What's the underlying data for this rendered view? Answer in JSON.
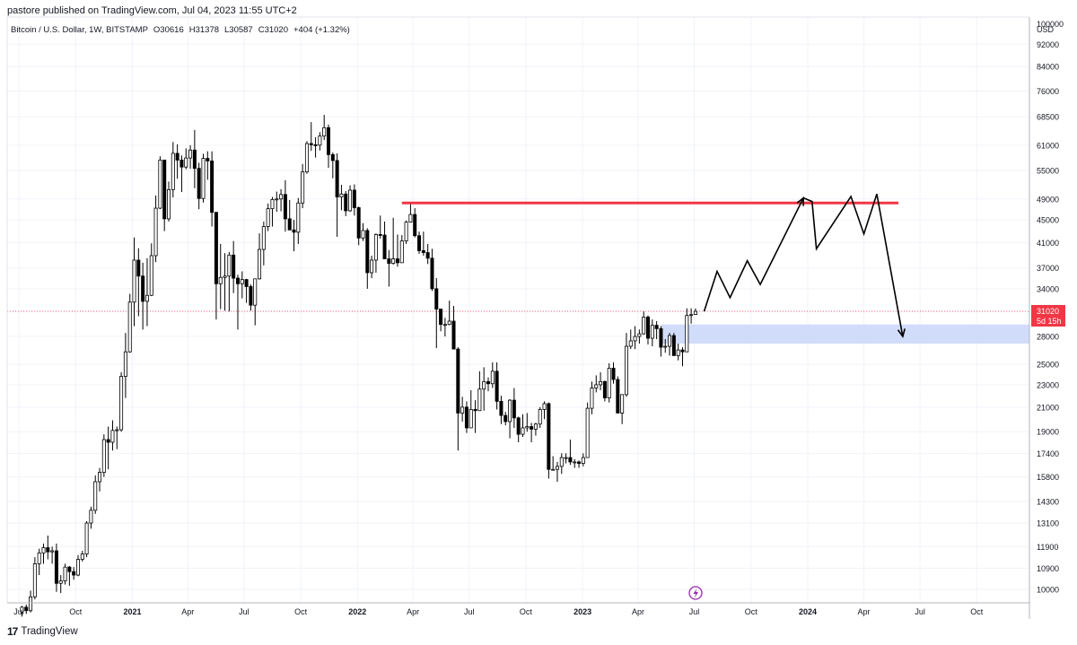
{
  "header": {
    "published_by": "pastore published on TradingView.com, Jul 04, 2023 11:55 UTC+2"
  },
  "symbol_line": {
    "name": "Bitcoin / U.S. Dollar, 1W, BITSTAMP",
    "open": "O30616",
    "high": "H31378",
    "low": "L30587",
    "close": "C31020",
    "change": "+404 (+1.32%)"
  },
  "price_scale": {
    "currency": "USD",
    "labels": [
      "100000",
      "92000",
      "84000",
      "76000",
      "68500",
      "61000",
      "55000",
      "49000",
      "45000",
      "41000",
      "37000",
      "34000",
      "31000",
      "28000",
      "25000",
      "23000",
      "21000",
      "19000",
      "17400",
      "15800",
      "14300",
      "13100",
      "11900",
      "10900",
      "10000"
    ]
  },
  "time_axis": {
    "labels": [
      "Jul",
      "Oct",
      "2021",
      "Apr",
      "Jul",
      "Oct",
      "2022",
      "Apr",
      "Jul",
      "Oct",
      "2023",
      "Apr",
      "Jul",
      "Oct",
      "2024",
      "Apr",
      "Jul",
      "Oct"
    ],
    "bold": [
      false,
      false,
      true,
      false,
      false,
      false,
      true,
      false,
      false,
      false,
      true,
      false,
      false,
      false,
      true,
      false,
      false,
      false
    ]
  },
  "last_price": {
    "value": "31020",
    "countdown": "5d 15h",
    "color": "#f23645"
  },
  "colors": {
    "resistance": "#f23645",
    "support_zone": "#d1dcfa",
    "candle": "#000000",
    "grid": "#f0f3fa"
  },
  "chart_data": {
    "type": "candlestick",
    "symbol": "Bitcoin / U.S. Dollar",
    "interval": "1W",
    "exchange": "BITSTAMP",
    "y_scale": "log",
    "ylim": [
      10000,
      100000
    ],
    "x_range": [
      "2020-07",
      "2024-11"
    ],
    "ohlc_weekly": [
      [
        "2020-07-06",
        9120,
        9350,
        8950,
        9300
      ],
      [
        "2020-07-13",
        9300,
        9400,
        9050,
        9170
      ],
      [
        "2020-07-20",
        9170,
        9950,
        9100,
        9700
      ],
      [
        "2020-07-27",
        9700,
        11400,
        9600,
        11100
      ],
      [
        "2020-08-03",
        11100,
        11800,
        10600,
        11600
      ],
      [
        "2020-08-10",
        11600,
        12050,
        11100,
        11850
      ],
      [
        "2020-08-17",
        11850,
        12450,
        11300,
        11650
      ],
      [
        "2020-08-24",
        11650,
        11900,
        11100,
        11700
      ],
      [
        "2020-08-31",
        11700,
        12050,
        9900,
        10250
      ],
      [
        "2020-09-07",
        10250,
        10600,
        9850,
        10350
      ],
      [
        "2020-09-14",
        10350,
        11100,
        10200,
        10950
      ],
      [
        "2020-09-21",
        10950,
        11000,
        10150,
        10750
      ],
      [
        "2020-09-28",
        10750,
        10950,
        10400,
        10600
      ],
      [
        "2020-10-05",
        10600,
        11500,
        10550,
        11300
      ],
      [
        "2020-10-12",
        11300,
        11700,
        11200,
        11550
      ],
      [
        "2020-10-19",
        11550,
        13200,
        11400,
        13100
      ],
      [
        "2020-10-26",
        13100,
        14000,
        12800,
        13800
      ],
      [
        "2020-11-02",
        13800,
        15900,
        13600,
        15500
      ],
      [
        "2020-11-09",
        15500,
        16400,
        14900,
        16100
      ],
      [
        "2020-11-16",
        16100,
        18800,
        15800,
        18400
      ],
      [
        "2020-11-23",
        18400,
        19400,
        16300,
        18200
      ],
      [
        "2020-11-30",
        18200,
        19900,
        17600,
        19100
      ],
      [
        "2020-12-07",
        19100,
        19400,
        17700,
        19150
      ],
      [
        "2020-12-14",
        19150,
        24200,
        19000,
        23800
      ],
      [
        "2020-12-21",
        23800,
        28400,
        21800,
        26300
      ],
      [
        "2020-12-28",
        26300,
        33300,
        26200,
        32200
      ],
      [
        "2021-01-04",
        32200,
        41900,
        29200,
        38200
      ],
      [
        "2021-01-11",
        38200,
        40100,
        30400,
        35800
      ],
      [
        "2021-01-18",
        35800,
        37800,
        28800,
        32300
      ],
      [
        "2021-01-25",
        32300,
        38500,
        29200,
        33100
      ],
      [
        "2021-02-01",
        33100,
        40900,
        33000,
        38900
      ],
      [
        "2021-02-08",
        38900,
        49700,
        37900,
        47200
      ],
      [
        "2021-02-15",
        47200,
        58300,
        47000,
        57400
      ],
      [
        "2021-02-22",
        57400,
        57500,
        43000,
        45200
      ],
      [
        "2021-03-01",
        45200,
        52600,
        44700,
        50900
      ],
      [
        "2021-03-08",
        50900,
        61800,
        49300,
        59000
      ],
      [
        "2021-03-15",
        59000,
        61200,
        53200,
        57400
      ],
      [
        "2021-03-22",
        57400,
        58500,
        50400,
        55800
      ],
      [
        "2021-03-29",
        55800,
        60200,
        55300,
        57900
      ],
      [
        "2021-04-05",
        57900,
        61000,
        55400,
        59800
      ],
      [
        "2021-04-12",
        59800,
        64900,
        51200,
        55500
      ],
      [
        "2021-04-19",
        55500,
        56800,
        47000,
        49100
      ],
      [
        "2021-04-26",
        49100,
        58900,
        48300,
        57800
      ],
      [
        "2021-05-03",
        57800,
        59500,
        53000,
        57200
      ],
      [
        "2021-05-10",
        57200,
        59500,
        43800,
        46400
      ],
      [
        "2021-05-17",
        46400,
        46500,
        30000,
        34700
      ],
      [
        "2021-05-24",
        34700,
        40800,
        31300,
        35600
      ],
      [
        "2021-05-31",
        35600,
        39300,
        31100,
        35800
      ],
      [
        "2021-06-07",
        35800,
        39500,
        31000,
        39000
      ],
      [
        "2021-06-14",
        39000,
        41300,
        33400,
        35500
      ],
      [
        "2021-06-21",
        35500,
        36000,
        28800,
        34700
      ],
      [
        "2021-06-28",
        34700,
        36500,
        32700,
        35300
      ],
      [
        "2021-07-05",
        35300,
        35400,
        32100,
        34300
      ],
      [
        "2021-07-12",
        34300,
        34600,
        31100,
        31800
      ],
      [
        "2021-07-19",
        31800,
        35300,
        29300,
        35400
      ],
      [
        "2021-07-26",
        35400,
        42600,
        35300,
        39900
      ],
      [
        "2021-08-02",
        39900,
        44700,
        37400,
        43800
      ],
      [
        "2021-08-09",
        43800,
        48100,
        43000,
        47100
      ],
      [
        "2021-08-16",
        47100,
        49400,
        43800,
        48900
      ],
      [
        "2021-08-23",
        48900,
        50500,
        46500,
        49000
      ],
      [
        "2021-08-30",
        49000,
        51000,
        46600,
        49900
      ],
      [
        "2021-09-06",
        49900,
        52900,
        42900,
        45200
      ],
      [
        "2021-09-13",
        45200,
        48800,
        43400,
        43200
      ],
      [
        "2021-09-20",
        43200,
        45000,
        39600,
        42800
      ],
      [
        "2021-09-27",
        42800,
        49200,
        40800,
        48200
      ],
      [
        "2021-10-04",
        48200,
        56500,
        47200,
        54700
      ],
      [
        "2021-10-11",
        54700,
        62000,
        54300,
        61400
      ],
      [
        "2021-10-18",
        61400,
        67000,
        59600,
        61100
      ],
      [
        "2021-10-25",
        61100,
        63000,
        58000,
        61000
      ],
      [
        "2021-11-01",
        61000,
        64300,
        59700,
        63300
      ],
      [
        "2021-11-08",
        63300,
        69000,
        62300,
        65500
      ],
      [
        "2021-11-15",
        65500,
        66300,
        55600,
        58700
      ],
      [
        "2021-11-22",
        58700,
        59200,
        53300,
        57300
      ],
      [
        "2021-11-29",
        57300,
        59000,
        42000,
        49400
      ],
      [
        "2021-12-06",
        49400,
        51900,
        46800,
        50000
      ],
      [
        "2021-12-13",
        50000,
        50600,
        45700,
        46700
      ],
      [
        "2021-12-20",
        46700,
        51800,
        46500,
        50800
      ],
      [
        "2021-12-27",
        50800,
        52000,
        45800,
        47300
      ],
      [
        "2022-01-03",
        47300,
        47500,
        40600,
        41800
      ],
      [
        "2022-01-10",
        41800,
        44400,
        41300,
        43100
      ],
      [
        "2022-01-17",
        43100,
        43500,
        34000,
        36300
      ],
      [
        "2022-01-24",
        36300,
        38900,
        35500,
        38200
      ],
      [
        "2022-01-31",
        38200,
        42600,
        36300,
        42400
      ],
      [
        "2022-02-07",
        42400,
        45800,
        41700,
        42300
      ],
      [
        "2022-02-14",
        42300,
        44700,
        39500,
        38400
      ],
      [
        "2022-02-21",
        38400,
        39800,
        34300,
        37700
      ],
      [
        "2022-02-28",
        37700,
        45400,
        37500,
        38400
      ],
      [
        "2022-03-07",
        38400,
        42400,
        37200,
        37800
      ],
      [
        "2022-03-14",
        37800,
        42300,
        37800,
        41300
      ],
      [
        "2022-03-21",
        41300,
        44900,
        40800,
        44600
      ],
      [
        "2022-03-28",
        44600,
        48200,
        44500,
        46000
      ],
      [
        "2022-04-04",
        46000,
        47200,
        41900,
        42200
      ],
      [
        "2022-04-11",
        42200,
        42900,
        39200,
        39700
      ],
      [
        "2022-04-18",
        39700,
        42900,
        38900,
        39400
      ],
      [
        "2022-04-25",
        39400,
        40800,
        37600,
        38500
      ],
      [
        "2022-05-02",
        38500,
        40000,
        33700,
        34000
      ],
      [
        "2022-05-09",
        34000,
        35500,
        26700,
        31300
      ],
      [
        "2022-05-16",
        31300,
        31300,
        28600,
        29400
      ],
      [
        "2022-05-23",
        29400,
        30200,
        28000,
        29400
      ],
      [
        "2022-05-30",
        29400,
        32400,
        29300,
        29800
      ],
      [
        "2022-06-06",
        29800,
        31700,
        26600,
        26600
      ],
      [
        "2022-06-13",
        26600,
        26800,
        17600,
        20500
      ],
      [
        "2022-06-20",
        20500,
        21900,
        19800,
        21000
      ],
      [
        "2022-06-27",
        21000,
        21500,
        18900,
        19300
      ],
      [
        "2022-07-04",
        19300,
        22500,
        19300,
        20800
      ],
      [
        "2022-07-11",
        20800,
        21600,
        18900,
        20700
      ],
      [
        "2022-07-18",
        20700,
        24300,
        20700,
        22600
      ],
      [
        "2022-07-25",
        22600,
        24700,
        20700,
        23300
      ],
      [
        "2022-08-01",
        23300,
        23700,
        22400,
        23100
      ],
      [
        "2022-08-08",
        23100,
        25200,
        22700,
        24300
      ],
      [
        "2022-08-15",
        24300,
        25200,
        20800,
        21500
      ],
      [
        "2022-08-22",
        21500,
        22000,
        19600,
        20300
      ],
      [
        "2022-08-29",
        20300,
        20600,
        19500,
        19800
      ],
      [
        "2022-09-05",
        19800,
        21700,
        18500,
        21600
      ],
      [
        "2022-09-12",
        21600,
        22700,
        19300,
        20100
      ],
      [
        "2022-09-19",
        20100,
        20200,
        18200,
        18800
      ],
      [
        "2022-09-26",
        18800,
        20400,
        18600,
        19300
      ],
      [
        "2022-10-03",
        19300,
        20500,
        19000,
        19400
      ],
      [
        "2022-10-10",
        19400,
        19700,
        18200,
        19200
      ],
      [
        "2022-10-17",
        19200,
        19700,
        18700,
        19600
      ],
      [
        "2022-10-24",
        19600,
        21000,
        19300,
        20800
      ],
      [
        "2022-10-31",
        20800,
        21500,
        20000,
        21300
      ],
      [
        "2022-11-07",
        21300,
        21400,
        15700,
        16300
      ],
      [
        "2022-11-14",
        16300,
        17200,
        16300,
        16300
      ],
      [
        "2022-11-21",
        16300,
        16800,
        15500,
        16500
      ],
      [
        "2022-11-28",
        16500,
        17400,
        16000,
        17100
      ],
      [
        "2022-12-05",
        17100,
        17400,
        16700,
        17100
      ],
      [
        "2022-12-12",
        17100,
        18400,
        16600,
        16800
      ],
      [
        "2022-12-19",
        16800,
        17000,
        16400,
        16800
      ],
      [
        "2022-12-26",
        16800,
        16900,
        16400,
        16700
      ],
      [
        "2023-01-02",
        16700,
        17400,
        16500,
        17100
      ],
      [
        "2023-01-09",
        17100,
        21400,
        17100,
        20900
      ],
      [
        "2023-01-16",
        20900,
        23300,
        20400,
        22700
      ],
      [
        "2023-01-23",
        22700,
        23900,
        22300,
        23000
      ],
      [
        "2023-01-30",
        23000,
        24200,
        22500,
        23300
      ],
      [
        "2023-02-06",
        23300,
        23400,
        21500,
        21800
      ],
      [
        "2023-02-13",
        21800,
        25100,
        21400,
        24600
      ],
      [
        "2023-02-20",
        24600,
        25200,
        23100,
        23500
      ],
      [
        "2023-02-27",
        23500,
        23800,
        21900,
        20500
      ],
      [
        "2023-03-06",
        20500,
        22100,
        19600,
        22100
      ],
      [
        "2023-03-13",
        22100,
        28400,
        21900,
        26900
      ],
      [
        "2023-03-20",
        26900,
        28800,
        26600,
        27500
      ],
      [
        "2023-03-27",
        27500,
        29200,
        26600,
        28000
      ],
      [
        "2023-04-03",
        28000,
        28800,
        27200,
        28300
      ],
      [
        "2023-04-10",
        28300,
        31000,
        28200,
        30300
      ],
      [
        "2023-04-17",
        30300,
        30500,
        27100,
        27800
      ],
      [
        "2023-04-24",
        27800,
        30000,
        26900,
        29300
      ],
      [
        "2023-05-01",
        29300,
        29800,
        27700,
        28900
      ],
      [
        "2023-05-08",
        28900,
        29200,
        25800,
        26800
      ],
      [
        "2023-05-15",
        26800,
        27700,
        26200,
        26900
      ],
      [
        "2023-05-22",
        26900,
        28400,
        25900,
        28100
      ],
      [
        "2023-05-29",
        28100,
        28400,
        26500,
        25900
      ],
      [
        "2023-06-05",
        25900,
        27200,
        25400,
        26500
      ],
      [
        "2023-06-12",
        26500,
        26800,
        24800,
        26300
      ],
      [
        "2023-06-19",
        26300,
        31400,
        26300,
        30500
      ],
      [
        "2023-06-26",
        30500,
        31400,
        29500,
        30600
      ],
      [
        "2023-07-03",
        30616,
        31378,
        30587,
        31020
      ]
    ],
    "last_price": 31020,
    "annotations": [
      {
        "type": "horizontal_line",
        "color": "red",
        "price": 48200,
        "from": "2022-03-14",
        "to": "2024-05-27"
      },
      {
        "type": "zone",
        "color": "light-blue",
        "price_range": [
          27200,
          29400
        ],
        "from": "2023-05-08",
        "to": "2024-11"
      },
      {
        "type": "projection_path",
        "color": "black",
        "points": [
          [
            "2023-07-17",
            31000
          ],
          [
            "2023-08-07",
            36500
          ],
          [
            "2023-08-28",
            32800
          ],
          [
            "2023-09-25",
            38100
          ],
          [
            "2023-10-16",
            34600
          ],
          [
            "2023-12-25",
            49200
          ],
          [
            "2024-01-08",
            48500
          ],
          [
            "2024-01-15",
            40000
          ],
          [
            "2024-03-11",
            49500
          ],
          [
            "2024-04-01",
            42500
          ],
          [
            "2024-04-22",
            50000
          ],
          [
            "2024-06-03",
            28000
          ]
        ]
      }
    ]
  }
}
